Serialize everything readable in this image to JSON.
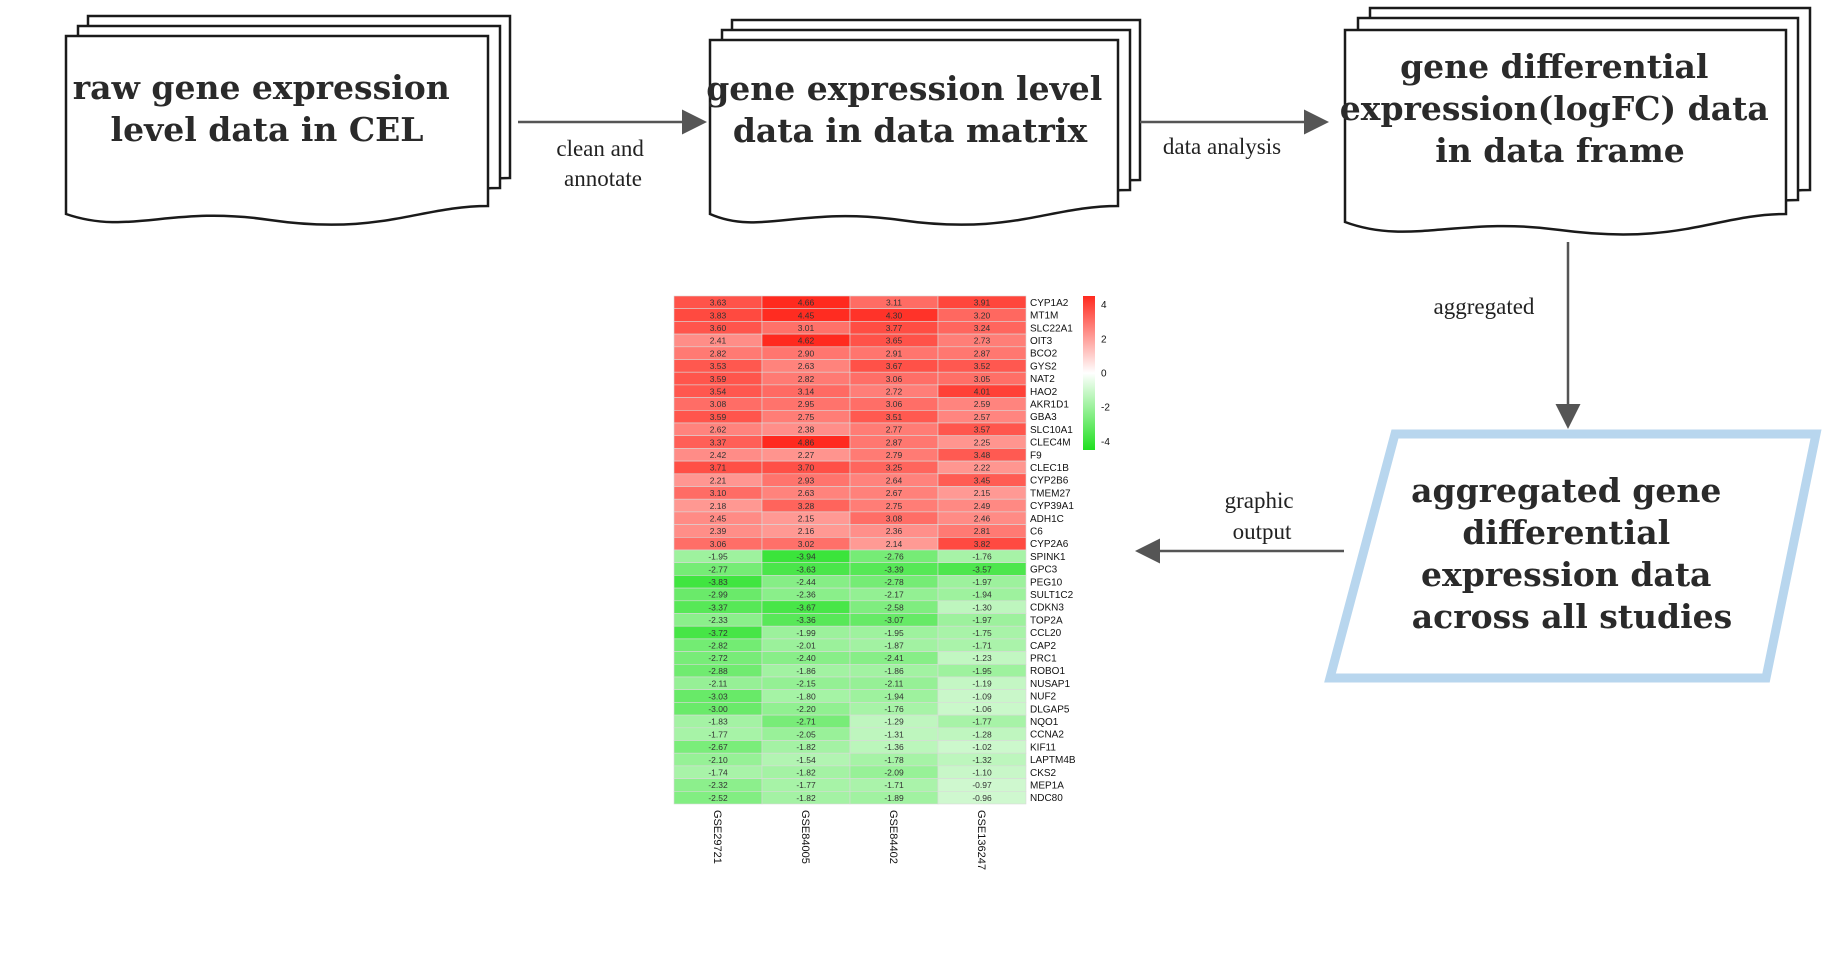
{
  "nodes": {
    "raw": {
      "lines": [
        "raw gene expression",
        "level data in CEL"
      ]
    },
    "matrix": {
      "lines": [
        "gene expression level",
        "data in data matrix"
      ]
    },
    "logfc": {
      "lines": [
        "gene differential",
        "expression(logFC) data",
        "in data frame"
      ]
    },
    "aggregated": {
      "lines": [
        "aggregated gene",
        "differential",
        "expression data",
        "across all studies"
      ]
    }
  },
  "edges": {
    "clean": {
      "lines": [
        "clean and",
        "annotate"
      ]
    },
    "analysis": {
      "lines": [
        "data analysis"
      ]
    },
    "aggregated": {
      "lines": [
        "aggregated"
      ]
    },
    "graphic": {
      "lines": [
        "graphic",
        "output"
      ]
    }
  },
  "colors": {
    "box_stroke": "#1a1a1a",
    "arrow": "#555555",
    "parallelogram_stroke": "#b8d6ee",
    "heat_high": "#ff2a1f",
    "heat_mid": "#ffffff",
    "heat_low": "#1fe01f"
  },
  "chart_data": {
    "type": "heatmap",
    "columns": [
      "GSE29721",
      "GSE84005",
      "GSE84402",
      "GSE136247"
    ],
    "rows": [
      "CYP1A2",
      "MT1M",
      "SLC22A1",
      "OIT3",
      "BCO2",
      "GYS2",
      "NAT2",
      "HAO2",
      "AKR1D1",
      "GBA3",
      "SLC10A1",
      "CLEC4M",
      "F9",
      "CLEC1B",
      "CYP2B6",
      "TMEM27",
      "CYP39A1",
      "ADH1C",
      "C6",
      "CYP2A6",
      "SPINK1",
      "GPC3",
      "PEG10",
      "SULT1C2",
      "CDKN3",
      "TOP2A",
      "CCL20",
      "CAP2",
      "PRC1",
      "ROBO1",
      "NUSAP1",
      "NUF2",
      "DLGAP5",
      "NQO1",
      "CCNA2",
      "KIF11",
      "LAPTM4B",
      "CKS2",
      "MEP1A",
      "NDC80"
    ],
    "values": [
      [
        3.63,
        4.66,
        3.11,
        3.91
      ],
      [
        3.83,
        4.45,
        4.3,
        3.2
      ],
      [
        3.6,
        3.01,
        3.77,
        3.24
      ],
      [
        2.41,
        4.62,
        3.65,
        2.73
      ],
      [
        2.82,
        2.9,
        2.91,
        2.87
      ],
      [
        3.53,
        2.63,
        3.67,
        3.52
      ],
      [
        3.59,
        2.82,
        3.06,
        3.05
      ],
      [
        3.54,
        3.14,
        2.72,
        4.01
      ],
      [
        3.08,
        2.95,
        3.06,
        2.59
      ],
      [
        3.59,
        2.75,
        3.51,
        2.57
      ],
      [
        2.62,
        2.38,
        2.77,
        3.57
      ],
      [
        3.37,
        4.86,
        2.87,
        2.25
      ],
      [
        2.42,
        2.27,
        2.79,
        3.48
      ],
      [
        3.71,
        3.7,
        3.25,
        2.22
      ],
      [
        2.21,
        2.93,
        2.64,
        3.45
      ],
      [
        3.1,
        2.63,
        2.67,
        2.15
      ],
      [
        2.18,
        3.28,
        2.75,
        2.49
      ],
      [
        2.45,
        2.15,
        3.08,
        2.46
      ],
      [
        2.39,
        2.16,
        2.36,
        2.81
      ],
      [
        3.06,
        3.02,
        2.14,
        3.82
      ],
      [
        -1.95,
        -3.94,
        -2.76,
        -1.76
      ],
      [
        -2.77,
        -3.63,
        -3.39,
        -3.57
      ],
      [
        -3.83,
        -2.44,
        -2.78,
        -1.97
      ],
      [
        -2.99,
        -2.36,
        -2.17,
        -1.94
      ],
      [
        -3.37,
        -3.67,
        -2.58,
        -1.3
      ],
      [
        -2.33,
        -3.36,
        -3.07,
        -1.97
      ],
      [
        -3.72,
        -1.99,
        -1.95,
        -1.75
      ],
      [
        -2.82,
        -2.01,
        -1.87,
        -1.71
      ],
      [
        -2.72,
        -2.4,
        -2.41,
        -1.23
      ],
      [
        -2.88,
        -1.86,
        -1.86,
        -1.95
      ],
      [
        -2.11,
        -2.15,
        -2.11,
        -1.19
      ],
      [
        -3.03,
        -1.8,
        -1.94,
        -1.09
      ],
      [
        -3.0,
        -2.2,
        -1.76,
        -1.06
      ],
      [
        -1.83,
        -2.71,
        -1.29,
        -1.77
      ],
      [
        -1.77,
        -2.05,
        -1.31,
        -1.28
      ],
      [
        -2.67,
        -1.82,
        -1.36,
        -1.02
      ],
      [
        -2.1,
        -1.54,
        -1.78,
        -1.32
      ],
      [
        -1.74,
        -1.82,
        -2.09,
        -1.1
      ],
      [
        -2.32,
        -1.77,
        -1.71,
        -0.97
      ],
      [
        -2.52,
        -1.82,
        -1.89,
        -0.96
      ]
    ],
    "color_scale": {
      "min": -4.5,
      "max": 4.5,
      "ticks": [
        4,
        2,
        0,
        -2,
        -4
      ],
      "low": "#1fe01f",
      "mid": "#ffffff",
      "high": "#ff2a1f"
    },
    "legend_position": "right"
  }
}
